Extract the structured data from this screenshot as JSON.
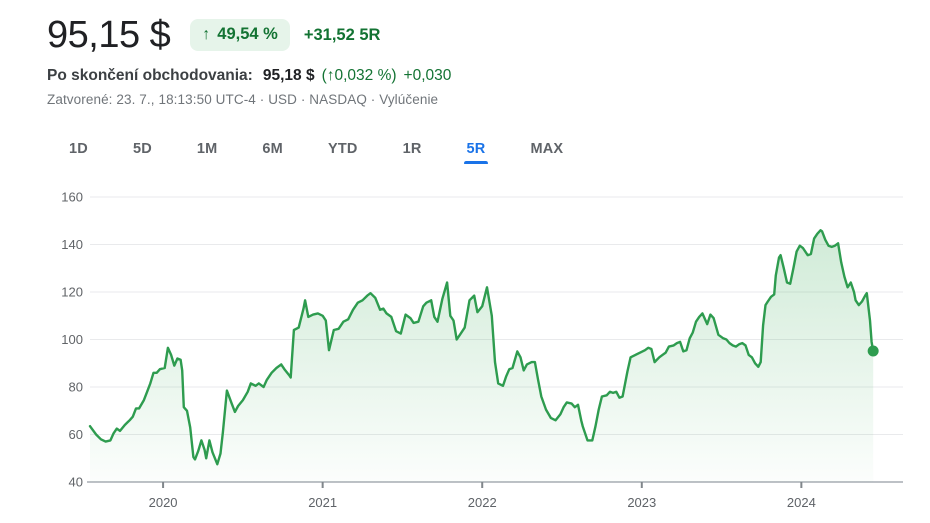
{
  "header": {
    "price": "95,15 $",
    "badge_arrow": "↑",
    "change_badge": "49,54 %",
    "change_abs": "+31,52 5R",
    "after_hours_label": "Po skončení obchodovania:",
    "after_hours_price": "95,18 $",
    "after_hours_pct": "(↑0,032 %)",
    "after_hours_abs": "+0,030",
    "status_line": "Zatvorené: 23. 7., 18:13:50 UTC-4 · USD · NASDAQ · Vylúčenie"
  },
  "tabs": [
    {
      "label": "1D",
      "active": false
    },
    {
      "label": "5D",
      "active": false
    },
    {
      "label": "1M",
      "active": false
    },
    {
      "label": "6M",
      "active": false
    },
    {
      "label": "YTD",
      "active": false
    },
    {
      "label": "1R",
      "active": false
    },
    {
      "label": "5R",
      "active": true
    },
    {
      "label": "MAX",
      "active": false
    }
  ],
  "colors": {
    "green_text": "#137333",
    "badge_bg": "#e6f4ea",
    "active_tab_blue": "#1a73e8",
    "line_green": "#2e9c4f",
    "fill_green": "#34a853",
    "gridline": "#e9eaec",
    "axis_line": "#bdc1c6",
    "tick_mark": "#80868b"
  },
  "chart_data": {
    "type": "area",
    "title": "",
    "xlabel": "",
    "ylabel": "",
    "legend": [],
    "grid": true,
    "ylim": [
      40,
      160
    ],
    "y_ticks": [
      160,
      140,
      120,
      100,
      80,
      60,
      40
    ],
    "xlim_years": [
      2019.542,
      2024.637
    ],
    "x_tick_years": [
      2020,
      2021,
      2022,
      2023,
      2024
    ],
    "x_tick_labels": [
      "2020",
      "2021",
      "2022",
      "2023",
      "2024"
    ],
    "end_point": {
      "x": 2024.45,
      "value": 95.15
    },
    "series": [
      {
        "name": "price",
        "points": [
          [
            2019.542,
            63.5
          ],
          [
            2019.58,
            60
          ],
          [
            2019.61,
            58
          ],
          [
            2019.64,
            57
          ],
          [
            2019.67,
            57.5
          ],
          [
            2019.69,
            60.5
          ],
          [
            2019.71,
            62.5
          ],
          [
            2019.73,
            61.5
          ],
          [
            2019.76,
            64
          ],
          [
            2019.79,
            66
          ],
          [
            2019.81,
            67.5
          ],
          [
            2019.83,
            71
          ],
          [
            2019.85,
            71
          ],
          [
            2019.88,
            74.5
          ],
          [
            2019.9,
            78
          ],
          [
            2019.92,
            81.5
          ],
          [
            2019.94,
            86
          ],
          [
            2019.96,
            86
          ],
          [
            2019.98,
            87.5
          ],
          [
            2020.01,
            88
          ],
          [
            2020.03,
            96.5
          ],
          [
            2020.05,
            93.5
          ],
          [
            2020.07,
            89
          ],
          [
            2020.09,
            92
          ],
          [
            2020.11,
            91.5
          ],
          [
            2020.12,
            87
          ],
          [
            2020.13,
            71.5
          ],
          [
            2020.15,
            70
          ],
          [
            2020.17,
            63
          ],
          [
            2020.19,
            50.5
          ],
          [
            2020.2,
            49.5
          ],
          [
            2020.22,
            53
          ],
          [
            2020.24,
            57.5
          ],
          [
            2020.26,
            53.5
          ],
          [
            2020.27,
            50
          ],
          [
            2020.29,
            57.5
          ],
          [
            2020.31,
            52.5
          ],
          [
            2020.34,
            47.5
          ],
          [
            2020.36,
            52
          ],
          [
            2020.375,
            61
          ],
          [
            2020.4,
            78.5
          ],
          [
            2020.43,
            73
          ],
          [
            2020.45,
            69.5
          ],
          [
            2020.47,
            72
          ],
          [
            2020.5,
            74.5
          ],
          [
            2020.53,
            78
          ],
          [
            2020.55,
            81.5
          ],
          [
            2020.58,
            80.5
          ],
          [
            2020.6,
            81.5
          ],
          [
            2020.63,
            80
          ],
          [
            2020.65,
            83
          ],
          [
            2020.68,
            86
          ],
          [
            2020.71,
            88
          ],
          [
            2020.74,
            89.5
          ],
          [
            2020.76,
            87.5
          ],
          [
            2020.79,
            85
          ],
          [
            2020.8,
            84
          ],
          [
            2020.82,
            104
          ],
          [
            2020.85,
            105
          ],
          [
            2020.88,
            113
          ],
          [
            2020.89,
            116.5
          ],
          [
            2020.91,
            109.5
          ],
          [
            2020.94,
            110.5
          ],
          [
            2020.97,
            111
          ],
          [
            2021.0,
            110
          ],
          [
            2021.02,
            108
          ],
          [
            2021.04,
            95.5
          ],
          [
            2021.07,
            104
          ],
          [
            2021.1,
            104.5
          ],
          [
            2021.13,
            107.5
          ],
          [
            2021.16,
            108.5
          ],
          [
            2021.19,
            112.5
          ],
          [
            2021.22,
            115.5
          ],
          [
            2021.25,
            116.5
          ],
          [
            2021.28,
            118.5
          ],
          [
            2021.3,
            119.5
          ],
          [
            2021.33,
            117.5
          ],
          [
            2021.36,
            112.5
          ],
          [
            2021.38,
            113
          ],
          [
            2021.4,
            111
          ],
          [
            2021.43,
            109.5
          ],
          [
            2021.46,
            103.5
          ],
          [
            2021.49,
            102.5
          ],
          [
            2021.52,
            110.5
          ],
          [
            2021.55,
            109
          ],
          [
            2021.57,
            107
          ],
          [
            2021.6,
            107.5
          ],
          [
            2021.63,
            114
          ],
          [
            2021.65,
            115.5
          ],
          [
            2021.68,
            116.5
          ],
          [
            2021.7,
            109.5
          ],
          [
            2021.72,
            107.5
          ],
          [
            2021.75,
            117
          ],
          [
            2021.78,
            124
          ],
          [
            2021.8,
            110
          ],
          [
            2021.82,
            108
          ],
          [
            2021.84,
            100
          ],
          [
            2021.86,
            102
          ],
          [
            2021.89,
            105
          ],
          [
            2021.92,
            116.5
          ],
          [
            2021.95,
            118.5
          ],
          [
            2021.97,
            111.5
          ],
          [
            2022.0,
            114
          ],
          [
            2022.03,
            122
          ],
          [
            2022.06,
            110
          ],
          [
            2022.08,
            90.5
          ],
          [
            2022.1,
            81.5
          ],
          [
            2022.13,
            80.5
          ],
          [
            2022.15,
            84.5
          ],
          [
            2022.17,
            87.5
          ],
          [
            2022.19,
            88
          ],
          [
            2022.22,
            95
          ],
          [
            2022.24,
            92.5
          ],
          [
            2022.26,
            87
          ],
          [
            2022.28,
            89.5
          ],
          [
            2022.31,
            90.5
          ],
          [
            2022.33,
            90.5
          ],
          [
            2022.35,
            83
          ],
          [
            2022.37,
            76
          ],
          [
            2022.4,
            70.5
          ],
          [
            2022.43,
            67
          ],
          [
            2022.46,
            66
          ],
          [
            2022.49,
            68.5
          ],
          [
            2022.51,
            71.5
          ],
          [
            2022.53,
            73.5
          ],
          [
            2022.56,
            73
          ],
          [
            2022.58,
            71.5
          ],
          [
            2022.6,
            72.5
          ],
          [
            2022.62,
            66
          ],
          [
            2022.63,
            63.5
          ],
          [
            2022.66,
            57.5
          ],
          [
            2022.69,
            57.5
          ],
          [
            2022.71,
            63.5
          ],
          [
            2022.73,
            70.5
          ],
          [
            2022.75,
            76
          ],
          [
            2022.78,
            76.5
          ],
          [
            2022.8,
            78
          ],
          [
            2022.82,
            77.5
          ],
          [
            2022.84,
            78
          ],
          [
            2022.86,
            75.5
          ],
          [
            2022.88,
            76
          ],
          [
            2022.91,
            86.5
          ],
          [
            2022.93,
            92.5
          ],
          [
            2022.96,
            93.5
          ],
          [
            2022.99,
            94.5
          ],
          [
            2023.02,
            95.5
          ],
          [
            2023.04,
            96.5
          ],
          [
            2023.06,
            96
          ],
          [
            2023.08,
            90.5
          ],
          [
            2023.11,
            92.5
          ],
          [
            2023.13,
            93.5
          ],
          [
            2023.15,
            94.5
          ],
          [
            2023.17,
            97
          ],
          [
            2023.2,
            97.5
          ],
          [
            2023.22,
            98.5
          ],
          [
            2023.24,
            99
          ],
          [
            2023.26,
            95
          ],
          [
            2023.28,
            95.5
          ],
          [
            2023.3,
            100.5
          ],
          [
            2023.32,
            103
          ],
          [
            2023.34,
            107.5
          ],
          [
            2023.36,
            109.5
          ],
          [
            2023.38,
            111
          ],
          [
            2023.41,
            106.5
          ],
          [
            2023.43,
            110.5
          ],
          [
            2023.45,
            109
          ],
          [
            2023.48,
            102
          ],
          [
            2023.51,
            100.5
          ],
          [
            2023.53,
            100
          ],
          [
            2023.55,
            98.5
          ],
          [
            2023.57,
            97.5
          ],
          [
            2023.59,
            97
          ],
          [
            2023.61,
            98
          ],
          [
            2023.63,
            98.5
          ],
          [
            2023.65,
            97.5
          ],
          [
            2023.67,
            93.5
          ],
          [
            2023.69,
            92.5
          ],
          [
            2023.71,
            90
          ],
          [
            2023.73,
            88.5
          ],
          [
            2023.745,
            90.5
          ],
          [
            2023.76,
            106
          ],
          [
            2023.775,
            114.5
          ],
          [
            2023.79,
            116
          ],
          [
            2023.81,
            118
          ],
          [
            2023.83,
            119
          ],
          [
            2023.84,
            127
          ],
          [
            2023.86,
            134.5
          ],
          [
            2023.87,
            135.5
          ],
          [
            2023.89,
            130
          ],
          [
            2023.91,
            124
          ],
          [
            2023.93,
            123.5
          ],
          [
            2023.95,
            130
          ],
          [
            2023.97,
            137
          ],
          [
            2023.99,
            139.5
          ],
          [
            2024.01,
            138.5
          ],
          [
            2024.04,
            135.5
          ],
          [
            2024.06,
            136
          ],
          [
            2024.08,
            142.5
          ],
          [
            2024.1,
            144.5
          ],
          [
            2024.12,
            146
          ],
          [
            2024.13,
            145.5
          ],
          [
            2024.15,
            142
          ],
          [
            2024.17,
            139.5
          ],
          [
            2024.19,
            139
          ],
          [
            2024.21,
            139.5
          ],
          [
            2024.23,
            140.5
          ],
          [
            2024.25,
            132.5
          ],
          [
            2024.27,
            126.5
          ],
          [
            2024.29,
            122
          ],
          [
            2024.31,
            124
          ],
          [
            2024.33,
            120
          ],
          [
            2024.34,
            116.5
          ],
          [
            2024.36,
            114.5
          ],
          [
            2024.38,
            116
          ],
          [
            2024.4,
            118.5
          ],
          [
            2024.41,
            119.5
          ],
          [
            2024.43,
            108
          ],
          [
            2024.44,
            99
          ],
          [
            2024.45,
            95.15
          ]
        ]
      }
    ]
  }
}
